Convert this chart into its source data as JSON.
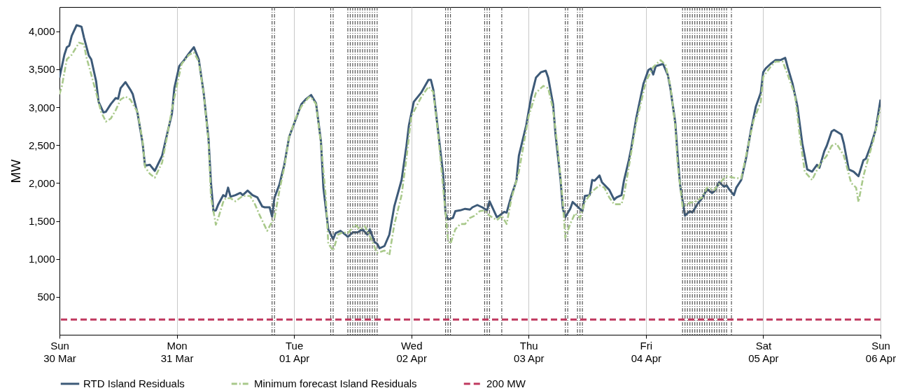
{
  "chart_data": {
    "type": "line",
    "ylabel": "MW",
    "grid": "x",
    "legend": "bottom",
    "xlim": [
      "--03-30T00:00",
      "--04-06T00:00"
    ],
    "xticks": [
      {
        "value": "--03-30T00:00",
        "label": "Sun\n30 Mar"
      },
      {
        "value": "--03-31T00:00",
        "label": "Mon\n31 Mar"
      },
      {
        "value": "--04-01T00:00",
        "label": "Tue\n01 Apr"
      },
      {
        "value": "--04-02T00:00",
        "label": "Wed\n02 Apr"
      },
      {
        "value": "--04-03T00:00",
        "label": "Thu\n03 Apr"
      },
      {
        "value": "--04-04T00:00",
        "label": "Fri\n04 Apr"
      },
      {
        "value": "--04-05T00:00",
        "label": "Sat\n05 Apr"
      },
      {
        "value": "--04-06T00:00",
        "label": "Sun\n06 Apr"
      }
    ],
    "ylim": [
      0,
      4320
    ],
    "yticks": [
      500,
      {
        "value": 1000,
        "label": "1,000"
      },
      {
        "value": 1500,
        "label": "1,500"
      },
      {
        "value": 2000,
        "label": "2,000"
      },
      {
        "value": 2500,
        "label": "2,500"
      },
      {
        "value": 3000,
        "label": "3,000"
      },
      {
        "value": 3500,
        "label": "3,500"
      },
      {
        "value": 4000,
        "label": "4,000"
      }
    ],
    "series": [
      {
        "name": "RTD Island Residuals",
        "color": "#3d5a78",
        "line_style": "solid",
        "x": [
          "--03-30T00:00",
          "--03-30T01:00",
          "--03-30T01:30",
          "--03-30T02:00",
          "--03-30T02:30",
          "--03-30T03:30",
          "--03-30T04:30",
          "--03-30T05:00",
          "--03-30T06:00",
          "--03-30T06:30",
          "--03-30T07:30",
          "--03-30T08:00",
          "--03-30T09:00",
          "--03-30T09:30",
          "--03-30T10:30",
          "--03-30T11:30",
          "--03-30T12:00",
          "--03-30T12:30",
          "--03-30T13:30",
          "--03-30T14:30",
          "--03-30T15:00",
          "--03-30T16:00",
          "--03-30T17:00",
          "--03-30T17:30",
          "--03-30T18:30",
          "--03-30T19:30",
          "--03-30T21:00",
          "--03-30T22:00",
          "--03-30T23:00",
          "--03-30T23:30",
          "--03-31T00:30",
          "--03-31T01:30",
          "--03-31T02:30",
          "--03-31T03:30",
          "--03-31T04:30",
          "--03-31T05:30",
          "--03-31T06:30",
          "--03-31T07:00",
          "--03-31T07:30",
          "--03-31T08:00",
          "--03-31T08:30",
          "--03-31T09:30",
          "--03-31T10:00",
          "--03-31T10:30",
          "--03-31T11:00",
          "--03-31T12:00",
          "--03-31T13:00",
          "--03-31T13:30",
          "--03-31T14:30",
          "--03-31T15:00",
          "--03-31T15:30",
          "--03-31T16:30",
          "--03-31T17:30",
          "--03-31T18:00",
          "--03-31T19:00",
          "--03-31T19:30",
          "--03-31T20:00",
          "--03-31T21:00",
          "--03-31T22:00",
          "--03-31T23:00",
          "--04-01T00:00",
          "--04-01T01:30",
          "--04-01T02:30",
          "--04-01T03:30",
          "--04-01T04:30",
          "--04-01T05:30",
          "--04-01T06:00",
          "--04-01T07:00",
          "--04-01T08:00",
          "--04-01T08:30",
          "--04-01T09:30",
          "--04-01T10:30",
          "--04-01T11:00",
          "--04-01T12:00",
          "--04-01T13:00",
          "--04-01T14:00",
          "--04-01T15:00",
          "--04-01T15:30",
          "--04-01T16:30",
          "--04-01T17:00",
          "--04-01T17:30",
          "--04-01T18:30",
          "--04-01T19:30",
          "--04-01T20:30",
          "--04-01T22:00",
          "--04-01T23:00",
          "--04-01T23:30",
          "--04-02T00:30",
          "--04-02T02:00",
          "--04-02T03:30",
          "--04-02T04:00",
          "--04-02T04:30",
          "--04-02T05:30",
          "--04-02T06:30",
          "--04-02T07:00",
          "--04-02T07:30",
          "--04-02T08:30",
          "--04-02T09:00",
          "--04-02T10:00",
          "--04-02T11:00",
          "--04-02T12:00",
          "--04-02T12:30",
          "--04-02T13:30",
          "--04-02T14:30",
          "--04-02T15:30",
          "--04-02T16:00",
          "--04-02T16:30",
          "--04-02T17:30",
          "--04-02T18:00",
          "--04-02T19:00",
          "--04-02T19:30",
          "--04-02T20:30",
          "--04-02T21:30",
          "--04-02T22:00",
          "--04-02T23:30",
          "--04-03T00:30",
          "--04-03T01:30",
          "--04-03T02:30",
          "--04-03T03:30",
          "--04-03T04:00",
          "--04-03T05:00",
          "--04-03T05:30",
          "--04-03T06:30",
          "--04-03T07:00",
          "--04-03T07:30",
          "--04-03T08:30",
          "--04-03T09:00",
          "--04-03T10:00",
          "--04-03T11:00",
          "--04-03T11:30",
          "--04-03T12:30",
          "--04-03T13:00",
          "--04-03T13:30",
          "--04-03T14:30",
          "--04-03T15:00",
          "--04-03T16:30",
          "--04-03T17:30",
          "--04-03T18:00",
          "--04-03T19:00",
          "--04-03T19:30",
          "--04-03T20:30",
          "--04-03T21:00",
          "--04-03T22:00",
          "--04-03T23:30",
          "--04-04T00:30",
          "--04-04T01:00",
          "--04-04T01:30",
          "--04-04T02:00",
          "--04-04T03:30",
          "--04-04T04:30",
          "--04-04T05:00",
          "--04-04T06:00",
          "--04-04T06:30",
          "--04-04T07:00",
          "--04-04T08:00",
          "--04-04T09:00",
          "--04-04T09:30",
          "--04-04T10:30",
          "--04-04T11:30",
          "--04-04T12:30",
          "--04-04T13:30",
          "--04-04T14:00",
          "--04-04T15:00",
          "--04-04T16:00",
          "--04-04T16:30",
          "--04-04T17:00",
          "--04-04T18:00",
          "--04-04T18:30",
          "--04-04T19:30",
          "--04-04T20:30",
          "--04-04T21:30",
          "--04-04T22:30",
          "--04-04T23:30",
          "--04-05T00:00",
          "--04-05T00:30",
          "--04-05T01:30",
          "--04-05T02:30",
          "--04-05T03:30",
          "--04-05T04:30",
          "--04-05T05:00",
          "--04-05T06:00",
          "--04-05T07:00",
          "--04-05T08:00",
          "--04-05T09:00",
          "--04-05T10:00",
          "--04-05T11:00",
          "--04-05T11:30",
          "--04-05T12:30",
          "--04-05T13:00",
          "--04-05T14:00",
          "--04-05T14:30",
          "--04-05T16:00",
          "--04-05T16:30",
          "--04-05T17:30",
          "--04-05T18:30",
          "--04-05T19:30",
          "--04-05T20:30",
          "--04-05T21:00",
          "--04-05T22:00",
          "--04-05T23:00",
          "--04-06T00:00"
        ],
        "values": [
          3390,
          3690,
          3790,
          3810,
          3940,
          4080,
          4060,
          3920,
          3680,
          3630,
          3340,
          3070,
          2930,
          2940,
          3040,
          3120,
          3110,
          3250,
          3330,
          3230,
          3170,
          2910,
          2530,
          2230,
          2240,
          2160,
          2360,
          2640,
          2910,
          3250,
          3540,
          3620,
          3710,
          3790,
          3630,
          3190,
          2580,
          2000,
          1630,
          1640,
          1720,
          1840,
          1820,
          1940,
          1820,
          1840,
          1870,
          1840,
          1900,
          1870,
          1840,
          1810,
          1690,
          1680,
          1680,
          1560,
          1810,
          1980,
          2240,
          2610,
          2780,
          3040,
          3110,
          3160,
          3050,
          2550,
          1940,
          1390,
          1260,
          1340,
          1370,
          1320,
          1290,
          1350,
          1350,
          1390,
          1320,
          1390,
          1220,
          1200,
          1140,
          1170,
          1320,
          1690,
          2040,
          2490,
          2760,
          3070,
          3190,
          3360,
          3360,
          3230,
          2670,
          2120,
          1600,
          1520,
          1540,
          1630,
          1640,
          1660,
          1650,
          1680,
          1710,
          1680,
          1640,
          1760,
          1690,
          1550,
          1570,
          1620,
          1610,
          1840,
          2030,
          2360,
          2760,
          3130,
          3390,
          3460,
          3480,
          3390,
          3040,
          2640,
          2060,
          1660,
          1550,
          1660,
          1750,
          1690,
          1630,
          1830,
          1840,
          2040,
          2030,
          2100,
          2010,
          1910,
          1780,
          1810,
          1840,
          2030,
          2300,
          2460,
          2850,
          3310,
          3490,
          3510,
          3430,
          3540,
          3570,
          3420,
          3250,
          2800,
          2360,
          1970,
          1570,
          1630,
          1610,
          1720,
          1800,
          1920,
          1870,
          1890,
          2010,
          1950,
          1970,
          1920,
          1840,
          1940,
          2040,
          2330,
          2700,
          3010,
          3190,
          3460,
          3510,
          3570,
          3620,
          3620,
          3650,
          3530,
          3310,
          3010,
          2520,
          2180,
          2150,
          2240,
          2200,
          2420,
          2490,
          2680,
          2700,
          2640,
          2520,
          2180,
          2150,
          2090,
          2300,
          2320,
          2490,
          2700,
          3100
        ]
      },
      {
        "name": "Minimum forecast Island Residuals",
        "color": "#a9c98b",
        "line_style": "dashed",
        "x": [
          "--03-30T00:00",
          "--03-30T00:30",
          "--03-30T01:30",
          "--03-30T02:30",
          "--03-30T04:00",
          "--03-30T05:00",
          "--03-30T05:30",
          "--03-30T06:30",
          "--03-30T07:30",
          "--03-30T08:30",
          "--03-30T09:30",
          "--03-30T10:30",
          "--03-30T11:30",
          "--03-30T12:30",
          "--03-30T13:30",
          "--03-30T14:30",
          "--03-30T16:00",
          "--03-30T17:00",
          "--03-30T17:30",
          "--03-30T18:30",
          "--03-30T19:30",
          "--03-30T21:00",
          "--03-30T22:00",
          "--03-30T23:00",
          "--03-31T00:00",
          "--03-31T01:00",
          "--03-31T02:30",
          "--03-31T03:30",
          "--03-31T04:30",
          "--03-31T05:30",
          "--03-31T06:30",
          "--03-31T07:00",
          "--03-31T08:00",
          "--03-31T08:30",
          "--03-31T09:30",
          "--03-31T10:00",
          "--03-31T11:00",
          "--03-31T12:00",
          "--03-31T13:30",
          "--03-31T15:00",
          "--03-31T16:00",
          "--03-31T17:00",
          "--03-31T18:30",
          "--03-31T19:30",
          "--03-31T20:00",
          "--03-31T21:00",
          "--03-31T22:00",
          "--03-31T23:00",
          "--04-01T00:30",
          "--04-01T01:30",
          "--04-01T03:00",
          "--04-01T03:30",
          "--04-01T04:30",
          "--04-01T05:30",
          "--04-01T06:30",
          "--04-01T07:00",
          "--04-01T08:00",
          "--04-01T09:00",
          "--04-01T10:00",
          "--04-01T11:00",
          "--04-01T12:30",
          "--04-01T13:30",
          "--04-01T14:30",
          "--04-01T15:00",
          "--04-01T16:00",
          "--04-01T17:00",
          "--04-01T18:30",
          "--04-01T19:30",
          "--04-01T20:30",
          "--04-01T22:00",
          "--04-01T23:00",
          "--04-02T00:00",
          "--04-02T02:00",
          "--04-02T03:30",
          "--04-02T04:30",
          "--04-02T05:30",
          "--04-02T06:30",
          "--04-02T07:30",
          "--04-02T08:00",
          "--04-02T09:00",
          "--04-02T10:00",
          "--04-02T11:00",
          "--04-02T12:00",
          "--04-02T13:00",
          "--04-02T14:00",
          "--04-02T15:00",
          "--04-02T16:00",
          "--04-02T17:30",
          "--04-02T18:30",
          "--04-02T19:30",
          "--04-02T20:30",
          "--04-02T22:00",
          "--04-03T00:00",
          "--04-03T01:30",
          "--04-03T03:00",
          "--04-03T04:00",
          "--04-03T05:00",
          "--04-03T06:00",
          "--04-03T07:00",
          "--04-03T07:30",
          "--04-03T08:30",
          "--04-03T09:30",
          "--04-03T10:30",
          "--04-03T11:30",
          "--04-03T13:00",
          "--04-03T14:30",
          "--04-03T15:30",
          "--04-03T16:30",
          "--04-03T17:30",
          "--04-03T19:00",
          "--04-03T19:30",
          "--04-03T20:30",
          "--04-03T22:00",
          "--04-04T00:00",
          "--04-04T01:30",
          "--04-04T03:00",
          "--04-04T04:00",
          "--04-04T05:00",
          "--04-04T06:00",
          "--04-04T06:30",
          "--04-04T07:30",
          "--04-04T09:00",
          "--04-04T10:00",
          "--04-04T11:30",
          "--04-04T12:30",
          "--04-04T14:00",
          "--04-04T15:30",
          "--04-04T16:30",
          "--04-04T18:00",
          "--04-04T19:30",
          "--04-04T20:30",
          "--04-04T22:00",
          "--04-04T23:30",
          "--04-05T00:00",
          "--04-05T01:30",
          "--04-05T02:30",
          "--04-05T04:00",
          "--04-05T05:00",
          "--04-05T06:30",
          "--04-05T07:30",
          "--04-05T08:30",
          "--04-05T10:00",
          "--04-05T11:30",
          "--04-05T13:00",
          "--04-05T14:00",
          "--04-05T15:00",
          "--04-05T16:30",
          "--04-05T18:00",
          "--04-05T19:00",
          "--04-05T19:30",
          "--04-05T20:30",
          "--04-05T21:00",
          "--04-05T22:30",
          "--04-06T00:00"
        ],
        "values": [
          3170,
          3280,
          3630,
          3690,
          3850,
          3830,
          3660,
          3430,
          3190,
          2940,
          2810,
          2850,
          2960,
          3100,
          3140,
          3100,
          2930,
          2550,
          2210,
          2120,
          2070,
          2270,
          2610,
          2970,
          3280,
          3570,
          3690,
          3720,
          3600,
          3190,
          2550,
          1810,
          1450,
          1540,
          1750,
          1800,
          1800,
          1760,
          1830,
          1830,
          1720,
          1570,
          1370,
          1490,
          1540,
          1900,
          2210,
          2610,
          2880,
          3010,
          3130,
          3130,
          3040,
          2520,
          1810,
          1200,
          1110,
          1320,
          1350,
          1340,
          1450,
          1390,
          1430,
          1370,
          1230,
          1080,
          1110,
          1050,
          1450,
          1840,
          2330,
          2880,
          3130,
          3270,
          3200,
          2640,
          1940,
          1260,
          1200,
          1390,
          1460,
          1460,
          1540,
          1570,
          1630,
          1640,
          1570,
          1510,
          1570,
          1460,
          1800,
          2150,
          2880,
          3190,
          3280,
          3250,
          2970,
          2420,
          1750,
          1280,
          1460,
          1600,
          1540,
          1750,
          1890,
          1970,
          1940,
          1810,
          1720,
          1720,
          1840,
          2210,
          2790,
          3340,
          3530,
          3620,
          3560,
          3280,
          2760,
          2240,
          1690,
          1740,
          1750,
          1810,
          1940,
          1910,
          2030,
          2090,
          2070,
          2060,
          2360,
          2820,
          3070,
          3400,
          3530,
          3600,
          3600,
          3430,
          3160,
          2610,
          2150,
          2040,
          2240,
          2360,
          2490,
          2520,
          2360,
          2000,
          1940,
          1750,
          2090,
          2210,
          2550,
          2990
        ]
      }
    ],
    "ref_lines": [
      {
        "axis": "x",
        "value": "--03-31T19:30",
        "color": "#555555",
        "line_style": "dashed"
      },
      {
        "axis": "x",
        "value": "--03-31T20:00",
        "color": "#555555",
        "line_style": "dashed"
      },
      {
        "axis": "x",
        "value": "--04-01T07:30",
        "color": "#555555",
        "line_style": "dashed"
      },
      {
        "axis": "x",
        "value": "--04-01T08:00",
        "color": "#555555",
        "line_style": "dashed"
      },
      {
        "axis": "x",
        "value": "--04-01T11:00",
        "color": "#555555",
        "line_style": "dashed"
      },
      {
        "axis": "x",
        "value": "--04-01T11:30",
        "color": "#555555",
        "line_style": "dashed"
      },
      {
        "axis": "x",
        "value": "--04-01T12:00",
        "color": "#555555",
        "line_style": "dashed"
      },
      {
        "axis": "x",
        "value": "--04-01T12:30",
        "color": "#555555",
        "line_style": "dashed"
      },
      {
        "axis": "x",
        "value": "--04-01T13:00",
        "color": "#555555",
        "line_style": "dashed"
      },
      {
        "axis": "x",
        "value": "--04-01T13:30",
        "color": "#555555",
        "line_style": "dashed"
      },
      {
        "axis": "x",
        "value": "--04-01T14:00",
        "color": "#555555",
        "line_style": "dashed"
      },
      {
        "axis": "x",
        "value": "--04-01T14:30",
        "color": "#555555",
        "line_style": "dashed"
      },
      {
        "axis": "x",
        "value": "--04-01T15:00",
        "color": "#555555",
        "line_style": "dashed"
      },
      {
        "axis": "x",
        "value": "--04-01T15:30",
        "color": "#555555",
        "line_style": "dashed"
      },
      {
        "axis": "x",
        "value": "--04-01T16:00",
        "color": "#555555",
        "line_style": "dashed"
      },
      {
        "axis": "x",
        "value": "--04-01T16:30",
        "color": "#555555",
        "line_style": "dashed"
      },
      {
        "axis": "x",
        "value": "--04-01T17:00",
        "color": "#555555",
        "line_style": "dashed"
      },
      {
        "axis": "x",
        "value": "--04-02T07:00",
        "color": "#555555",
        "line_style": "dashed"
      },
      {
        "axis": "x",
        "value": "--04-02T07:30",
        "color": "#555555",
        "line_style": "dashed"
      },
      {
        "axis": "x",
        "value": "--04-02T08:00",
        "color": "#555555",
        "line_style": "dashed"
      },
      {
        "axis": "x",
        "value": "--04-02T15:00",
        "color": "#555555",
        "line_style": "dashed"
      },
      {
        "axis": "x",
        "value": "--04-02T15:30",
        "color": "#555555",
        "line_style": "dashed"
      },
      {
        "axis": "x",
        "value": "--04-02T16:00",
        "color": "#555555",
        "line_style": "dashed"
      },
      {
        "axis": "x",
        "value": "--04-02T18:30",
        "color": "#555555",
        "line_style": "dashed"
      },
      {
        "axis": "x",
        "value": "--04-03T07:30",
        "color": "#555555",
        "line_style": "dashed"
      },
      {
        "axis": "x",
        "value": "--04-03T08:00",
        "color": "#555555",
        "line_style": "dashed"
      },
      {
        "axis": "x",
        "value": "--04-03T10:00",
        "color": "#555555",
        "line_style": "dashed"
      },
      {
        "axis": "x",
        "value": "--04-03T10:30",
        "color": "#555555",
        "line_style": "dashed"
      },
      {
        "axis": "x",
        "value": "--04-03T11:00",
        "color": "#555555",
        "line_style": "dashed"
      },
      {
        "axis": "x",
        "value": "--04-04T07:30",
        "color": "#555555",
        "line_style": "dashed"
      },
      {
        "axis": "x",
        "value": "--04-04T08:00",
        "color": "#555555",
        "line_style": "dashed"
      },
      {
        "axis": "x",
        "value": "--04-04T08:30",
        "color": "#555555",
        "line_style": "dashed"
      },
      {
        "axis": "x",
        "value": "--04-04T09:00",
        "color": "#555555",
        "line_style": "dashed"
      },
      {
        "axis": "x",
        "value": "--04-04T09:30",
        "color": "#555555",
        "line_style": "dashed"
      },
      {
        "axis": "x",
        "value": "--04-04T10:00",
        "color": "#555555",
        "line_style": "dashed"
      },
      {
        "axis": "x",
        "value": "--04-04T10:30",
        "color": "#555555",
        "line_style": "dashed"
      },
      {
        "axis": "x",
        "value": "--04-04T11:00",
        "color": "#555555",
        "line_style": "dashed"
      },
      {
        "axis": "x",
        "value": "--04-04T11:30",
        "color": "#555555",
        "line_style": "dashed"
      },
      {
        "axis": "x",
        "value": "--04-04T12:00",
        "color": "#555555",
        "line_style": "dashed"
      },
      {
        "axis": "x",
        "value": "--04-04T12:30",
        "color": "#555555",
        "line_style": "dashed"
      },
      {
        "axis": "x",
        "value": "--04-04T13:00",
        "color": "#555555",
        "line_style": "dashed"
      },
      {
        "axis": "x",
        "value": "--04-04T13:30",
        "color": "#555555",
        "line_style": "dashed"
      },
      {
        "axis": "x",
        "value": "--04-04T14:00",
        "color": "#555555",
        "line_style": "dashed"
      },
      {
        "axis": "x",
        "value": "--04-04T14:30",
        "color": "#555555",
        "line_style": "dashed"
      },
      {
        "axis": "x",
        "value": "--04-04T15:00",
        "color": "#555555",
        "line_style": "dashed"
      },
      {
        "axis": "x",
        "value": "--04-04T15:30",
        "color": "#555555",
        "line_style": "dashed"
      },
      {
        "axis": "x",
        "value": "--04-04T16:00",
        "color": "#555555",
        "line_style": "dashed"
      },
      {
        "axis": "x",
        "value": "--04-04T16:30",
        "color": "#555555",
        "line_style": "dashed"
      },
      {
        "axis": "x",
        "value": "--04-04T17:30",
        "color": "#555555",
        "line_style": "dashed"
      },
      {
        "axis": "y",
        "value": 200,
        "label": "200 MW",
        "color": "#c0395f",
        "line_style": "dashed"
      }
    ]
  }
}
